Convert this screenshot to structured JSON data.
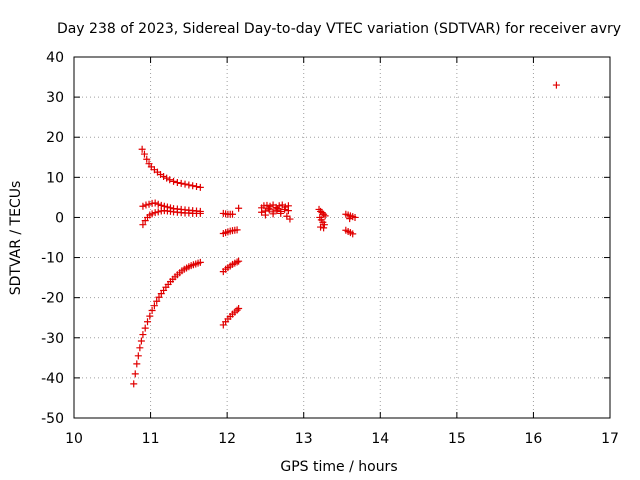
{
  "chart_data": {
    "type": "scatter",
    "title": "Day 238 of 2023, Sidereal Day-to-day VTEC variation (SDTVAR) for receiver avry",
    "xlabel": "GPS time / hours",
    "ylabel": "SDTVAR / TECUs",
    "xlim": [
      10,
      17
    ],
    "ylim": [
      -50,
      40
    ],
    "xticks": [
      "10",
      "11",
      "12",
      "13",
      "14",
      "15",
      "16",
      "17"
    ],
    "yticks": [
      "40",
      "30",
      "20",
      "10",
      "0",
      "-10",
      "-20",
      "-30",
      "-40",
      "-50"
    ],
    "grid": true,
    "marker": "plus",
    "marker_color": "#e00000",
    "series": [
      {
        "points": [
          [
            10.89,
            17.0
          ],
          [
            10.92,
            15.8
          ],
          [
            10.95,
            14.5
          ],
          [
            10.98,
            13.4
          ],
          [
            11.01,
            12.6
          ],
          [
            11.05,
            11.9
          ],
          [
            11.09,
            11.3
          ],
          [
            11.13,
            10.7
          ],
          [
            11.17,
            10.2
          ],
          [
            11.21,
            9.8
          ],
          [
            11.25,
            9.4
          ],
          [
            11.3,
            9.0
          ],
          [
            11.35,
            8.7
          ],
          [
            11.4,
            8.5
          ],
          [
            11.45,
            8.3
          ],
          [
            11.5,
            8.1
          ],
          [
            11.55,
            7.9
          ],
          [
            11.6,
            7.7
          ],
          [
            11.65,
            7.5
          ]
        ]
      },
      {
        "points": [
          [
            10.9,
            2.8
          ],
          [
            10.94,
            3.1
          ],
          [
            10.98,
            3.3
          ],
          [
            11.02,
            3.5
          ],
          [
            11.06,
            3.6
          ],
          [
            11.1,
            3.3
          ],
          [
            11.14,
            3.0
          ],
          [
            11.18,
            2.8
          ],
          [
            11.22,
            2.6
          ],
          [
            11.26,
            2.4
          ],
          [
            11.3,
            2.2
          ],
          [
            11.35,
            2.1
          ],
          [
            11.4,
            2.0
          ],
          [
            11.45,
            1.9
          ],
          [
            11.5,
            1.8
          ],
          [
            11.55,
            1.7
          ],
          [
            11.6,
            1.6
          ],
          [
            11.65,
            1.5
          ]
        ]
      },
      {
        "points": [
          [
            10.9,
            -1.8
          ],
          [
            10.93,
            -0.8
          ],
          [
            10.96,
            0.0
          ],
          [
            10.99,
            0.6
          ],
          [
            11.02,
            0.9
          ],
          [
            11.06,
            1.2
          ],
          [
            11.1,
            1.4
          ],
          [
            11.14,
            1.6
          ],
          [
            11.18,
            1.7
          ],
          [
            11.22,
            1.6
          ],
          [
            11.26,
            1.5
          ],
          [
            11.3,
            1.4
          ],
          [
            11.35,
            1.3
          ],
          [
            11.4,
            1.2
          ],
          [
            11.45,
            1.1
          ],
          [
            11.5,
            1.1
          ],
          [
            11.55,
            1.0
          ],
          [
            11.6,
            1.0
          ],
          [
            11.65,
            1.0
          ]
        ]
      },
      {
        "points": [
          [
            10.78,
            -41.5
          ],
          [
            10.8,
            -39.0
          ],
          [
            10.82,
            -36.5
          ],
          [
            10.84,
            -34.5
          ],
          [
            10.86,
            -32.5
          ],
          [
            10.88,
            -30.8
          ],
          [
            10.9,
            -29.2
          ],
          [
            10.93,
            -27.6
          ],
          [
            10.96,
            -26.0
          ],
          [
            10.99,
            -24.6
          ],
          [
            11.02,
            -23.2
          ],
          [
            11.05,
            -22.0
          ],
          [
            11.08,
            -20.9
          ],
          [
            11.11,
            -19.9
          ],
          [
            11.14,
            -19.0
          ],
          [
            11.17,
            -18.2
          ],
          [
            11.2,
            -17.4
          ],
          [
            11.23,
            -16.7
          ],
          [
            11.26,
            -16.0
          ],
          [
            11.29,
            -15.4
          ],
          [
            11.32,
            -14.8
          ],
          [
            11.35,
            -14.3
          ],
          [
            11.38,
            -13.8
          ],
          [
            11.41,
            -13.3
          ],
          [
            11.44,
            -12.9
          ],
          [
            11.47,
            -12.6
          ],
          [
            11.5,
            -12.3
          ],
          [
            11.53,
            -12.0
          ],
          [
            11.56,
            -11.8
          ],
          [
            11.59,
            -11.6
          ],
          [
            11.62,
            -11.4
          ],
          [
            11.65,
            -11.2
          ]
        ]
      },
      {
        "points": [
          [
            11.95,
            1.0
          ],
          [
            11.98,
            0.9
          ],
          [
            12.01,
            0.8
          ],
          [
            12.04,
            0.8
          ],
          [
            12.07,
            0.8
          ],
          [
            12.15,
            2.3
          ]
        ]
      },
      {
        "points": [
          [
            11.95,
            -4.0
          ],
          [
            11.98,
            -3.8
          ],
          [
            12.01,
            -3.6
          ],
          [
            12.04,
            -3.4
          ],
          [
            12.07,
            -3.3
          ],
          [
            12.1,
            -3.2
          ],
          [
            12.13,
            -3.1
          ]
        ]
      },
      {
        "points": [
          [
            11.95,
            -13.5
          ],
          [
            11.98,
            -12.9
          ],
          [
            12.01,
            -12.5
          ],
          [
            12.04,
            -12.1
          ],
          [
            12.07,
            -11.7
          ],
          [
            12.1,
            -11.4
          ],
          [
            12.13,
            -11.1
          ],
          [
            12.15,
            -10.9
          ]
        ]
      },
      {
        "points": [
          [
            11.95,
            -26.8
          ],
          [
            11.98,
            -26.0
          ],
          [
            12.01,
            -25.3
          ],
          [
            12.04,
            -24.7
          ],
          [
            12.07,
            -24.1
          ],
          [
            12.1,
            -23.6
          ],
          [
            12.13,
            -23.1
          ],
          [
            12.15,
            -22.7
          ]
        ]
      },
      {
        "points": [
          [
            12.45,
            2.4
          ],
          [
            12.48,
            2.9
          ],
          [
            12.52,
            3.0
          ],
          [
            12.56,
            2.8
          ],
          [
            12.6,
            3.1
          ],
          [
            12.64,
            2.5
          ],
          [
            12.68,
            2.9
          ],
          [
            12.72,
            3.1
          ],
          [
            12.76,
            2.6
          ],
          [
            12.8,
            2.9
          ],
          [
            12.45,
            1.3
          ],
          [
            12.5,
            1.6
          ],
          [
            12.55,
            1.9
          ],
          [
            12.6,
            1.4
          ],
          [
            12.65,
            1.8
          ],
          [
            12.7,
            1.5
          ],
          [
            12.75,
            2.0
          ],
          [
            12.8,
            1.7
          ],
          [
            12.5,
            0.6
          ],
          [
            12.6,
            0.9
          ],
          [
            12.7,
            1.0
          ],
          [
            12.78,
            0.3
          ],
          [
            12.82,
            -0.4
          ],
          [
            12.66,
            2.2
          ],
          [
            12.54,
            2.3
          ]
        ]
      },
      {
        "points": [
          [
            13.2,
            2.0
          ],
          [
            13.22,
            1.5
          ],
          [
            13.24,
            1.2
          ],
          [
            13.26,
            0.8
          ],
          [
            13.28,
            0.4
          ],
          [
            13.21,
            0.0
          ],
          [
            13.23,
            -0.6
          ],
          [
            13.25,
            -1.2
          ],
          [
            13.27,
            -1.8
          ],
          [
            13.22,
            -2.4
          ],
          [
            13.26,
            -2.6
          ]
        ]
      },
      {
        "points": [
          [
            13.55,
            0.8
          ],
          [
            13.58,
            0.6
          ],
          [
            13.61,
            0.4
          ],
          [
            13.64,
            0.2
          ],
          [
            13.67,
            0.0
          ],
          [
            13.6,
            -0.3
          ],
          [
            13.55,
            -3.2
          ],
          [
            13.58,
            -3.5
          ],
          [
            13.61,
            -3.8
          ],
          [
            13.64,
            -4.1
          ]
        ]
      },
      {
        "points": [
          [
            16.3,
            33.0
          ]
        ]
      }
    ]
  }
}
